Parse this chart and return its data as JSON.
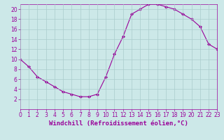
{
  "x": [
    0,
    1,
    2,
    3,
    4,
    5,
    6,
    7,
    8,
    9,
    10,
    11,
    12,
    13,
    14,
    15,
    16,
    17,
    18,
    19,
    20,
    21,
    22,
    23
  ],
  "y": [
    10,
    8.5,
    6.5,
    5.5,
    4.5,
    3.5,
    3.0,
    2.5,
    2.5,
    3.0,
    6.5,
    11.0,
    14.5,
    19.0,
    20.0,
    21.0,
    21.0,
    20.5,
    20.0,
    19.0,
    18.0,
    16.5,
    13.0,
    12.0
  ],
  "line_color": "#990099",
  "marker": "D",
  "marker_size": 2,
  "background_color": "#cce8e8",
  "grid_color": "#aacccc",
  "xlabel": "Windchill (Refroidissement éolien,°C)",
  "xlabel_color": "#990099",
  "xlim": [
    0,
    23
  ],
  "ylim": [
    0,
    21
  ],
  "yticks": [
    2,
    4,
    6,
    8,
    10,
    12,
    14,
    16,
    18,
    20
  ],
  "xticks": [
    0,
    1,
    2,
    3,
    4,
    5,
    6,
    7,
    8,
    9,
    10,
    11,
    12,
    13,
    14,
    15,
    16,
    17,
    18,
    19,
    20,
    21,
    22,
    23
  ],
  "tick_color": "#990099",
  "tick_fontsize": 5.5,
  "xlabel_fontsize": 6.5
}
